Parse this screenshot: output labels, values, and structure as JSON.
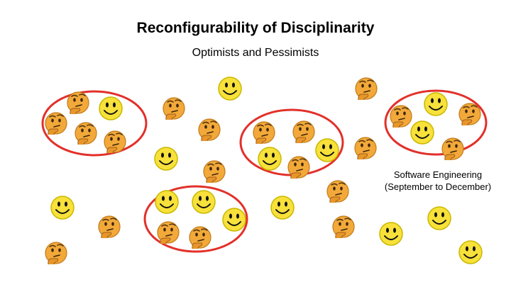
{
  "title": "Reconfigurability of Disciplinarity",
  "subtitle": "Optimists and Pessimists",
  "caption": {
    "line1": "Software Engineering",
    "line2": "(September to December)"
  },
  "colors": {
    "group_ring": "#e2302a",
    "smiley_face": "#f7e13a",
    "smiley_edge": "#c9b800",
    "thinking_face": "#f2a93a",
    "thinking_edge": "#c07a1a"
  },
  "legend": {
    "optimist_icon": "smiley-face-icon",
    "pessimist_icon": "thinking-face-icon"
  }
}
